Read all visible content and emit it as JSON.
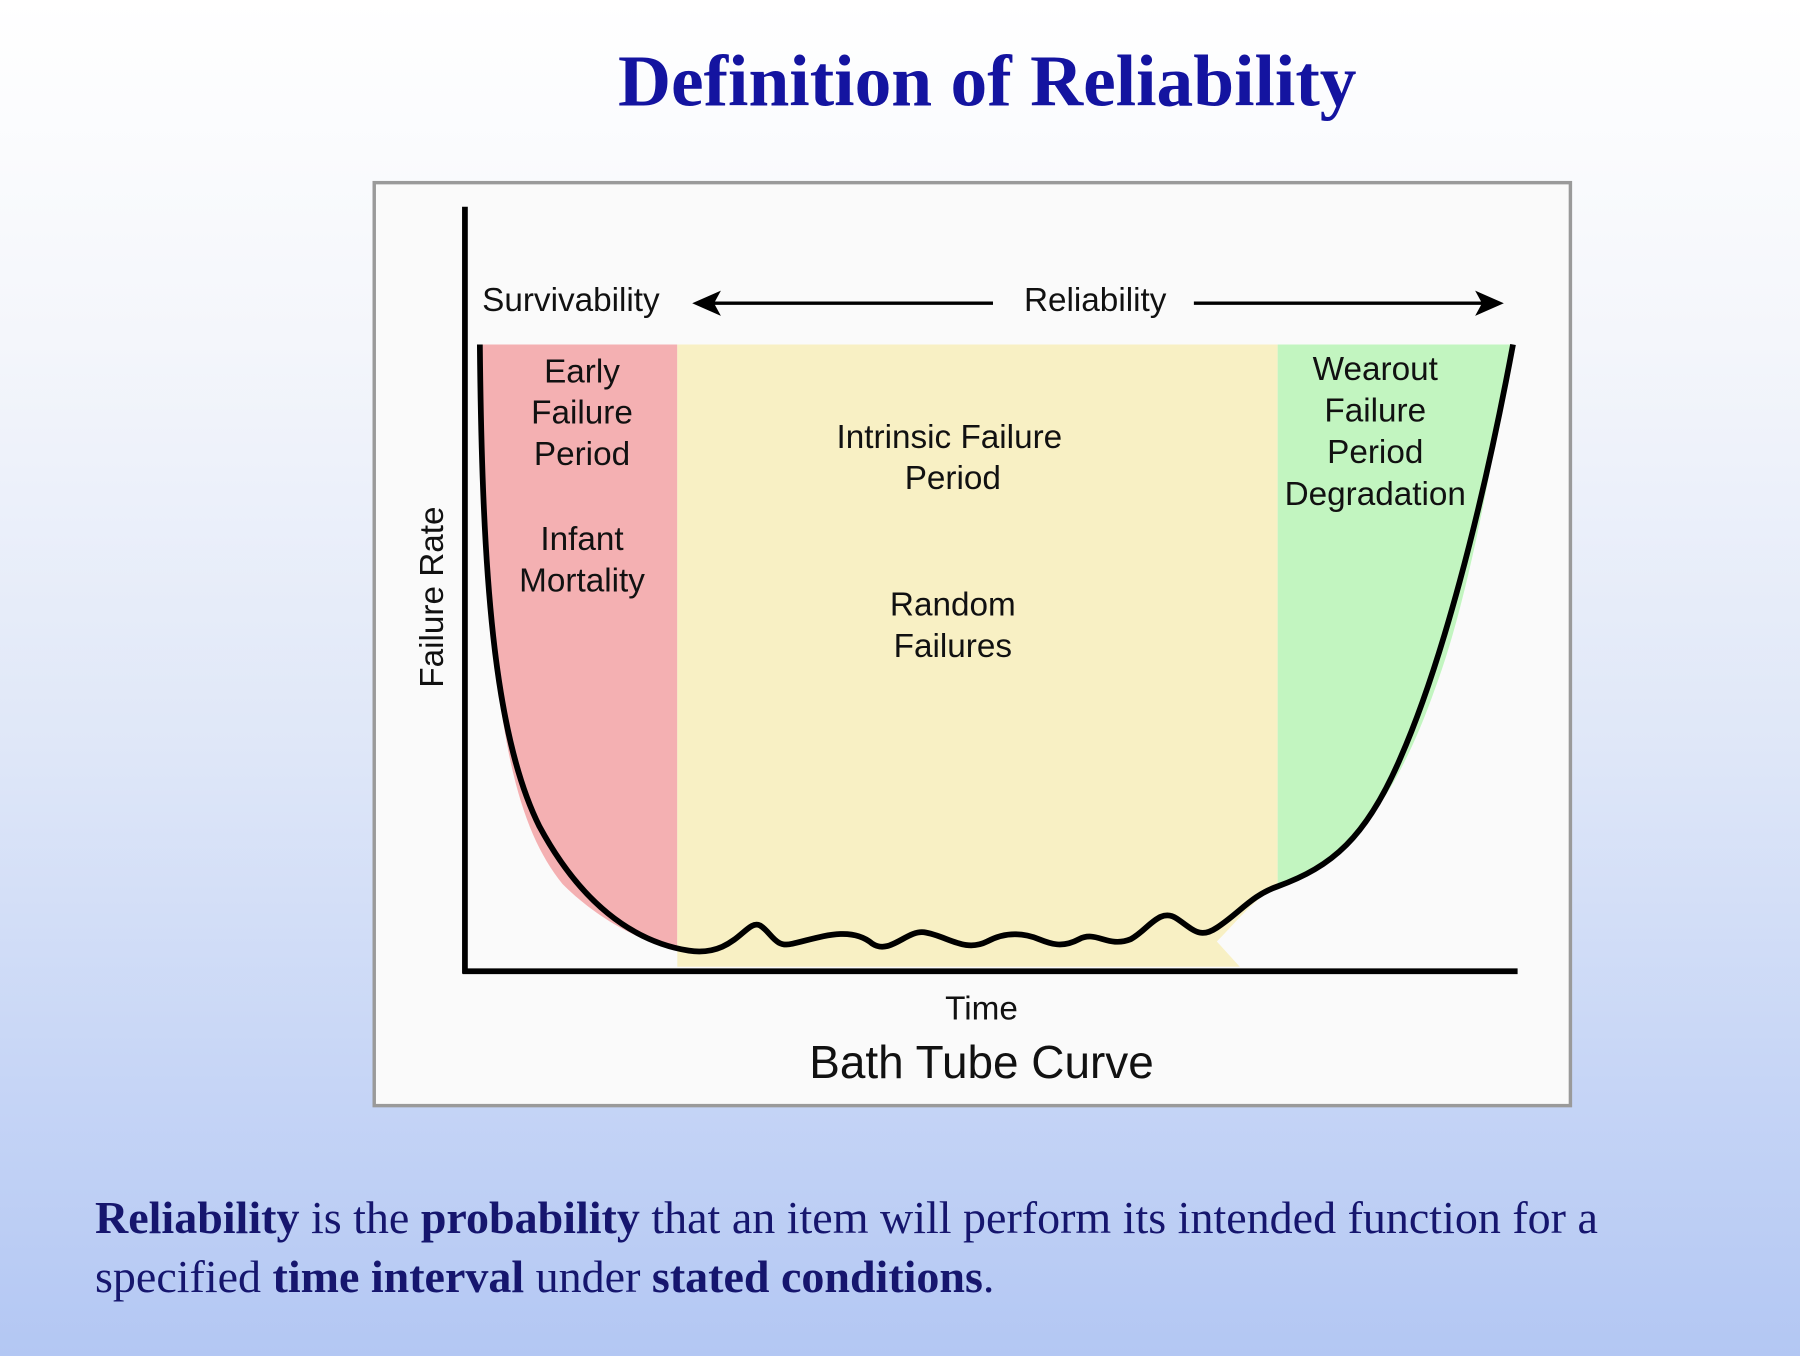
{
  "title": "Definition of Reliability",
  "diagram": {
    "top_left_label": "Survivability",
    "top_center_label": "Reliability",
    "y_axis_label": "Failure Rate",
    "x_axis_label": "Time",
    "caption": "Bath Tube Curve",
    "regions": {
      "early": {
        "lines": [
          "Early",
          "Failure",
          "Period"
        ],
        "sub": [
          "Infant",
          "Mortality"
        ],
        "color": "#f4b0b2"
      },
      "intrinsic": {
        "lines": [
          "Intrinsic Failure",
          "Period"
        ],
        "sub": [
          "Random",
          "Failures"
        ],
        "color": "#f8f0c4"
      },
      "wearout": {
        "lines": [
          "Wearout",
          "Failure",
          "Period",
          "Degradation"
        ],
        "color": "#c2f5c0"
      }
    }
  },
  "definition": {
    "p1": "Reliability",
    "p2": " is the ",
    "p3": "probability",
    "p4": " that an item will perform its intended function for a specified ",
    "p5": "time interval",
    "p6": " under ",
    "p7": "stated conditions",
    "p8": "."
  }
}
